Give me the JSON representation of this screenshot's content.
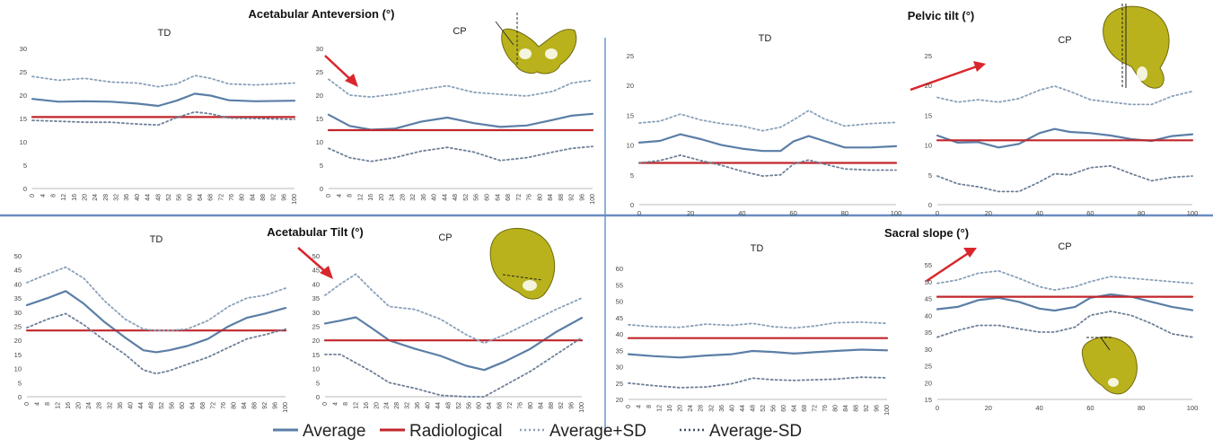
{
  "section_titles": {
    "aa": "Acetabular Anteversion (°)",
    "pt": "Pelvic tilt (°)",
    "at": "Acetabular Tilt (°)",
    "ss": "Sacral slope (°)"
  },
  "legend": {
    "average": "Average",
    "radiological": "Radiological",
    "plus_sd": "Average+SD",
    "minus_sd": "Average-SD"
  },
  "colors": {
    "average": "#5b7ea6",
    "radiological": "#c0262b",
    "plus_sd": "#8aa0b8",
    "minus_sd": "#6d7f96",
    "arrow": "#d9262c",
    "divider": "#6a8cc2",
    "bone": "#c9c21e"
  },
  "chart_data": [
    {
      "id": "aa_td",
      "type": "line",
      "title": "TD",
      "ylim": [
        0,
        30
      ],
      "yticks": [
        0,
        5,
        10,
        15,
        20,
        25,
        30
      ],
      "xticks": [
        "0",
        "4",
        "8",
        "12",
        "16",
        "20",
        "24",
        "28",
        "32",
        "36",
        "40",
        "44",
        "48",
        "52",
        "56",
        "60",
        "64",
        "68",
        "72",
        "76",
        "80",
        "84",
        "88",
        "92",
        "96",
        "100"
      ],
      "x": [
        0,
        10,
        20,
        30,
        40,
        48,
        55,
        62,
        68,
        75,
        85,
        100
      ],
      "series": [
        {
          "name": "Average",
          "values": [
            19.2,
            18.6,
            18.7,
            18.6,
            18.2,
            17.7,
            18.8,
            20.3,
            19.9,
            18.9,
            18.7,
            18.8
          ]
        },
        {
          "name": "Radiological",
          "values": [
            15.3,
            15.3,
            15.3,
            15.3,
            15.3,
            15.3,
            15.3,
            15.3,
            15.3,
            15.3,
            15.3,
            15.3
          ]
        },
        {
          "name": "Average+SD",
          "values": [
            24,
            23.2,
            23.6,
            22.8,
            22.6,
            21.8,
            22.4,
            24.2,
            23.6,
            22.4,
            22.2,
            22.6
          ]
        },
        {
          "name": "Average-SD",
          "values": [
            14.6,
            14.4,
            14.2,
            14.2,
            13.8,
            13.6,
            15.2,
            16.4,
            16.0,
            15.1,
            15.0,
            14.8
          ]
        }
      ]
    },
    {
      "id": "aa_cp",
      "type": "line",
      "title": "CP",
      "ylim": [
        0,
        30
      ],
      "yticks": [
        0,
        5,
        10,
        15,
        20,
        25,
        30
      ],
      "xticks": [
        "0",
        "4",
        "8",
        "12",
        "16",
        "20",
        "24",
        "28",
        "32",
        "36",
        "40",
        "44",
        "48",
        "52",
        "56",
        "60",
        "64",
        "68",
        "72",
        "76",
        "80",
        "84",
        "88",
        "92",
        "96",
        "100"
      ],
      "x": [
        0,
        8,
        16,
        25,
        35,
        45,
        55,
        65,
        75,
        85,
        92,
        100
      ],
      "series": [
        {
          "name": "Average",
          "values": [
            15.8,
            13.4,
            12.6,
            12.8,
            14.3,
            15.2,
            14.0,
            13.2,
            13.5,
            14.7,
            15.6,
            16.0
          ]
        },
        {
          "name": "Radiological",
          "values": [
            12.5,
            12.5,
            12.5,
            12.5,
            12.5,
            12.5,
            12.5,
            12.5,
            12.5,
            12.5,
            12.5,
            12.5
          ]
        },
        {
          "name": "Average+SD",
          "values": [
            23.4,
            20.0,
            19.6,
            20.2,
            21.2,
            22.0,
            20.6,
            20.2,
            19.8,
            20.8,
            22.6,
            23.2
          ]
        },
        {
          "name": "Average-SD",
          "values": [
            8.6,
            6.6,
            5.8,
            6.6,
            8.0,
            8.8,
            7.8,
            6.0,
            6.6,
            7.8,
            8.6,
            9.0
          ]
        }
      ]
    },
    {
      "id": "pt_td",
      "type": "line",
      "title": "TD",
      "ylim": [
        0,
        25
      ],
      "yticks": [
        0,
        5,
        10,
        15,
        20,
        25
      ],
      "xticks": [
        "0",
        "20",
        "40",
        "60",
        "80",
        "100"
      ],
      "x": [
        0,
        8,
        16,
        24,
        32,
        40,
        48,
        55,
        60,
        66,
        72,
        80,
        90,
        100
      ],
      "series": [
        {
          "name": "Average",
          "values": [
            10.4,
            10.7,
            11.8,
            11.0,
            10.0,
            9.4,
            9.0,
            9.0,
            10.6,
            11.5,
            10.7,
            9.6,
            9.6,
            9.8
          ]
        },
        {
          "name": "Radiological",
          "values": [
            7.0,
            7.0,
            7.0,
            7.0,
            7.0,
            7.0,
            7.0,
            7.0,
            7.0,
            7.0,
            7.0,
            7.0,
            7.0,
            7.0
          ]
        },
        {
          "name": "Average+SD",
          "values": [
            13.7,
            14.0,
            15.2,
            14.2,
            13.6,
            13.2,
            12.4,
            13.0,
            14.2,
            15.8,
            14.4,
            13.2,
            13.6,
            13.8
          ]
        },
        {
          "name": "Average-SD",
          "values": [
            7.0,
            7.4,
            8.3,
            7.4,
            6.6,
            5.6,
            4.8,
            5.0,
            6.8,
            7.5,
            6.8,
            6.0,
            5.8,
            5.8
          ]
        }
      ]
    },
    {
      "id": "pt_cp",
      "type": "line",
      "title": "CP",
      "ylim": [
        0,
        25
      ],
      "yticks": [
        0,
        5,
        10,
        15,
        20,
        25
      ],
      "xticks": [
        "0",
        "20",
        "40",
        "60",
        "80",
        "100"
      ],
      "x": [
        0,
        8,
        16,
        24,
        32,
        40,
        46,
        52,
        60,
        68,
        76,
        84,
        92,
        100
      ],
      "series": [
        {
          "name": "Average",
          "values": [
            11.6,
            10.4,
            10.5,
            9.6,
            10.2,
            12.0,
            12.7,
            12.2,
            12.0,
            11.6,
            11.0,
            10.7,
            11.5,
            11.8
          ]
        },
        {
          "name": "Radiological",
          "values": [
            10.8,
            10.8,
            10.8,
            10.8,
            10.8,
            10.8,
            10.8,
            10.8,
            10.8,
            10.8,
            10.8,
            10.8,
            10.8,
            10.8
          ]
        },
        {
          "name": "Average+SD",
          "values": [
            18.0,
            17.2,
            17.6,
            17.2,
            17.8,
            19.2,
            19.9,
            19.0,
            17.6,
            17.2,
            16.8,
            16.8,
            18.2,
            19.0
          ]
        },
        {
          "name": "Average-SD",
          "values": [
            4.8,
            3.5,
            3.0,
            2.2,
            2.2,
            3.8,
            5.2,
            5.0,
            6.2,
            6.5,
            5.2,
            4.0,
            4.6,
            4.8
          ]
        }
      ]
    },
    {
      "id": "at_td",
      "type": "line",
      "title": "TD",
      "ylim": [
        0,
        50
      ],
      "yticks": [
        0,
        5,
        10,
        15,
        20,
        25,
        30,
        35,
        40,
        45,
        50
      ],
      "xticks": [
        "0",
        "4",
        "8",
        "12",
        "16",
        "20",
        "24",
        "28",
        "32",
        "36",
        "40",
        "44",
        "48",
        "52",
        "56",
        "60",
        "64",
        "68",
        "72",
        "76",
        "80",
        "84",
        "88",
        "92",
        "96",
        "100"
      ],
      "x": [
        0,
        8,
        15,
        22,
        30,
        38,
        45,
        50,
        55,
        62,
        70,
        78,
        85,
        92,
        100
      ],
      "series": [
        {
          "name": "Average",
          "values": [
            32.5,
            35.0,
            37.5,
            33.0,
            26.5,
            21.0,
            16.5,
            15.8,
            16.5,
            18.0,
            20.5,
            25.0,
            28.0,
            29.5,
            31.5
          ]
        },
        {
          "name": "Radiological",
          "values": [
            23.5,
            23.5,
            23.5,
            23.5,
            23.5,
            23.5,
            23.5,
            23.5,
            23.5,
            23.5,
            23.5,
            23.5,
            23.5,
            23.5,
            23.5
          ]
        },
        {
          "name": "Average+SD",
          "values": [
            40.5,
            43.5,
            46.0,
            42.0,
            34.0,
            27.5,
            24.0,
            23.5,
            23.5,
            24.0,
            27.0,
            32.0,
            35.0,
            36.0,
            38.5
          ]
        },
        {
          "name": "Average-SD",
          "values": [
            24.5,
            27.5,
            29.5,
            25.5,
            20.0,
            15.0,
            9.5,
            8.2,
            9.2,
            11.5,
            14.0,
            17.5,
            20.5,
            22.0,
            24.0
          ]
        }
      ]
    },
    {
      "id": "at_cp",
      "type": "line",
      "title": "CP",
      "ylim": [
        0,
        50
      ],
      "yticks": [
        0,
        5,
        10,
        15,
        20,
        25,
        30,
        35,
        40,
        45,
        50
      ],
      "xticks": [
        "0",
        "4",
        "8",
        "12",
        "16",
        "20",
        "24",
        "28",
        "32",
        "36",
        "40",
        "44",
        "48",
        "52",
        "56",
        "60",
        "64",
        "68",
        "72",
        "76",
        "80",
        "84",
        "88",
        "92",
        "96",
        "100"
      ],
      "x": [
        0,
        6,
        12,
        18,
        25,
        35,
        45,
        55,
        62,
        70,
        80,
        90,
        100
      ],
      "series": [
        {
          "name": "Average",
          "values": [
            26.0,
            27.0,
            28.2,
            24.5,
            20.0,
            17.0,
            14.5,
            11.0,
            9.5,
            12.5,
            17.0,
            23.0,
            28.0
          ]
        },
        {
          "name": "Radiological",
          "values": [
            20.0,
            20.0,
            20.0,
            20.0,
            20.0,
            20.0,
            20.0,
            20.0,
            20.0,
            20.0,
            20.0,
            20.0,
            20.0
          ]
        },
        {
          "name": "Average+SD",
          "values": [
            36.0,
            40.0,
            43.5,
            38.0,
            32.0,
            31.0,
            27.5,
            22.0,
            19.0,
            22.0,
            26.5,
            31.0,
            35.0
          ]
        },
        {
          "name": "Average-SD",
          "values": [
            15.0,
            15.0,
            12.0,
            9.0,
            5.0,
            3.0,
            0.5,
            0.0,
            0.0,
            4.0,
            9.0,
            15.0,
            21.0
          ]
        }
      ]
    },
    {
      "id": "ss_td",
      "type": "line",
      "title": "TD",
      "ylim": [
        20,
        60
      ],
      "yticks": [
        20,
        25,
        30,
        35,
        40,
        45,
        50,
        55,
        60
      ],
      "xticks": [
        "0",
        "4",
        "8",
        "12",
        "16",
        "20",
        "24",
        "28",
        "32",
        "36",
        "40",
        "44",
        "48",
        "52",
        "56",
        "60",
        "64",
        "68",
        "72",
        "76",
        "80",
        "84",
        "88",
        "92",
        "96",
        "100"
      ],
      "x": [
        0,
        10,
        20,
        30,
        40,
        48,
        56,
        64,
        72,
        80,
        90,
        100
      ],
      "series": [
        {
          "name": "Average",
          "values": [
            33.8,
            33.2,
            32.8,
            33.4,
            33.8,
            34.8,
            34.5,
            34.0,
            34.4,
            34.8,
            35.2,
            35.0
          ]
        },
        {
          "name": "Radiological",
          "values": [
            38.7,
            38.7,
            38.7,
            38.7,
            38.7,
            38.7,
            38.7,
            38.7,
            38.7,
            38.7,
            38.7,
            38.7
          ]
        },
        {
          "name": "Average+SD",
          "values": [
            42.8,
            42.2,
            42.0,
            43.0,
            42.6,
            43.2,
            42.2,
            41.8,
            42.4,
            43.4,
            43.6,
            43.2
          ]
        },
        {
          "name": "Average-SD",
          "values": [
            25.0,
            24.2,
            23.6,
            23.8,
            24.8,
            26.5,
            26.0,
            25.8,
            26.0,
            26.2,
            26.8,
            26.6
          ]
        }
      ]
    },
    {
      "id": "ss_cp",
      "type": "line",
      "title": "CP",
      "ylim": [
        15,
        55
      ],
      "yticks": [
        15,
        20,
        25,
        30,
        35,
        40,
        45,
        50,
        55
      ],
      "xticks": [
        "0",
        "20",
        "40",
        "60",
        "80",
        "100"
      ],
      "x": [
        0,
        8,
        16,
        24,
        32,
        40,
        46,
        54,
        60,
        68,
        76,
        84,
        92,
        100
      ],
      "series": [
        {
          "name": "Average",
          "values": [
            41.8,
            42.5,
            44.5,
            45.2,
            44.0,
            42.0,
            41.4,
            42.5,
            45.2,
            46.2,
            45.5,
            44.0,
            42.5,
            41.5
          ]
        },
        {
          "name": "Radiological",
          "values": [
            45.5,
            45.5,
            45.5,
            45.5,
            45.5,
            45.5,
            45.5,
            45.5,
            45.5,
            45.5,
            45.5,
            45.5,
            45.5,
            45.5
          ]
        },
        {
          "name": "Average+SD",
          "values": [
            49.5,
            50.5,
            52.5,
            53.2,
            51.0,
            48.5,
            47.5,
            48.5,
            50.0,
            51.5,
            51.0,
            50.5,
            50.0,
            49.5
          ]
        },
        {
          "name": "Average-SD",
          "values": [
            33.5,
            35.5,
            37.0,
            37.0,
            36.0,
            35.0,
            35.0,
            36.5,
            40.0,
            41.2,
            40.0,
            37.5,
            34.5,
            33.5
          ]
        }
      ]
    }
  ]
}
